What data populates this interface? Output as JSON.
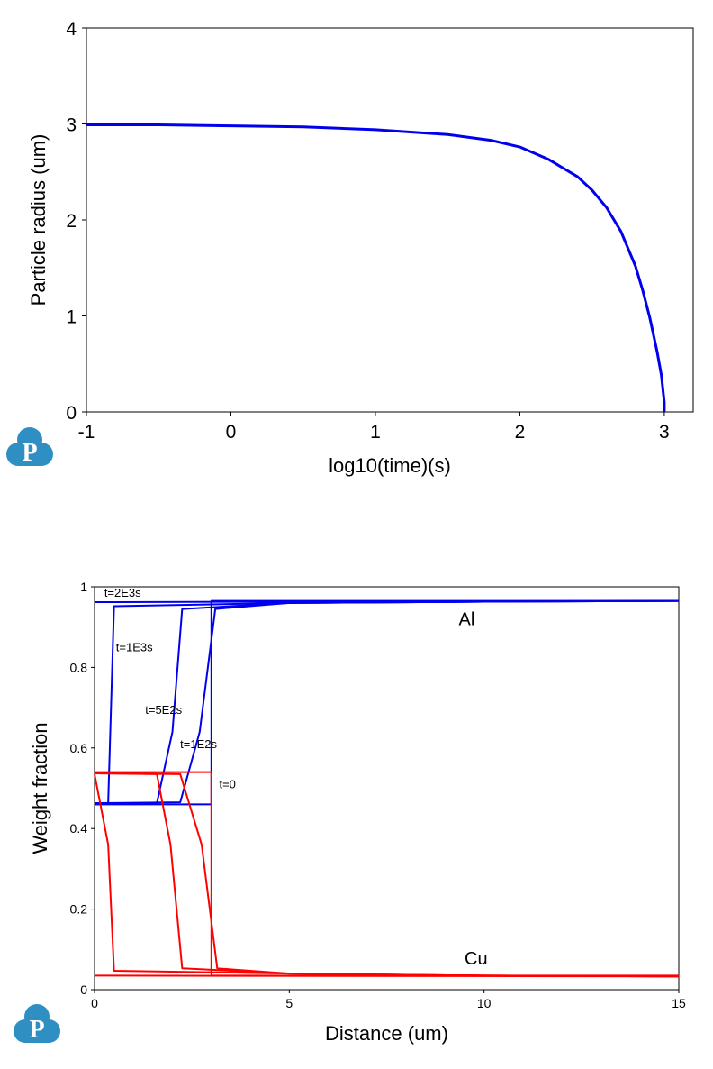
{
  "logo_color": "#2f8fc3",
  "logo_letter": "P",
  "chart_data": [
    {
      "type": "line",
      "title": "",
      "xlabel": "log10(time)(s)",
      "ylabel": "Particle radius (um)",
      "xlim": [
        -1,
        3.2
      ],
      "ylim": [
        0,
        4
      ],
      "xticks": [
        -1,
        0,
        1,
        2,
        3
      ],
      "yticks": [
        0,
        1,
        2,
        3,
        4
      ],
      "grid": false,
      "series": [
        {
          "color": "#0000ee",
          "x": [
            -1.0,
            -0.5,
            0.0,
            0.5,
            1.0,
            1.3,
            1.5,
            1.6,
            1.8,
            2.0,
            2.2,
            2.4,
            2.5,
            2.6,
            2.7,
            2.8,
            2.85,
            2.9,
            2.95,
            2.98,
            3.0,
            3.0
          ],
          "y": [
            2.99,
            2.99,
            2.98,
            2.97,
            2.94,
            2.91,
            2.89,
            2.87,
            2.83,
            2.76,
            2.63,
            2.45,
            2.31,
            2.13,
            1.88,
            1.52,
            1.27,
            0.98,
            0.63,
            0.38,
            0.1,
            0.0
          ]
        }
      ]
    },
    {
      "type": "line",
      "title": "",
      "xlabel": "Distance (um)",
      "ylabel": "Weight fraction",
      "xlim": [
        0,
        15
      ],
      "ylim": [
        0,
        1
      ],
      "xticks": [
        0,
        5,
        10,
        15
      ],
      "yticks": [
        0,
        0.2,
        0.4,
        0.6,
        0.8,
        1
      ],
      "ytick_labels": [
        "0",
        "0.2",
        "0.4",
        "0.6",
        "0.8",
        "1"
      ],
      "grid": false,
      "series": [
        {
          "color": "#0000ee",
          "x": [
            0,
            3.0,
            3.0,
            15
          ],
          "y": [
            0.46,
            0.46,
            0.965,
            0.965
          ]
        },
        {
          "color": "#0000ee",
          "x": [
            0,
            2.2,
            2.7,
            3.1,
            5,
            10,
            15
          ],
          "y": [
            0.463,
            0.465,
            0.64,
            0.945,
            0.96,
            0.963,
            0.965
          ]
        },
        {
          "color": "#0000ee",
          "x": [
            0,
            1.6,
            2.0,
            2.25,
            5,
            10,
            15
          ],
          "y": [
            0.46,
            0.463,
            0.64,
            0.945,
            0.96,
            0.963,
            0.965
          ]
        },
        {
          "color": "#0000ee",
          "x": [
            0,
            0.35,
            0.5,
            5,
            10,
            15
          ],
          "y": [
            0.46,
            0.463,
            0.952,
            0.96,
            0.963,
            0.965
          ]
        },
        {
          "color": "#0000ee",
          "x": [
            0,
            15
          ],
          "y": [
            0.962,
            0.965
          ]
        },
        {
          "color": "#ff0000",
          "x": [
            0,
            3.0,
            3.0,
            15
          ],
          "y": [
            0.54,
            0.54,
            0.035,
            0.035
          ]
        },
        {
          "color": "#ff0000",
          "x": [
            0,
            2.2,
            2.75,
            3.15,
            5,
            10,
            15
          ],
          "y": [
            0.537,
            0.535,
            0.36,
            0.053,
            0.04,
            0.035,
            0.033
          ]
        },
        {
          "color": "#ff0000",
          "x": [
            0,
            1.6,
            1.95,
            2.25,
            5,
            10,
            15
          ],
          "y": [
            0.537,
            0.535,
            0.36,
            0.053,
            0.04,
            0.035,
            0.033
          ]
        },
        {
          "color": "#ff0000",
          "x": [
            0,
            0.35,
            0.5,
            5,
            10,
            15
          ],
          "y": [
            0.535,
            0.36,
            0.047,
            0.04,
            0.035,
            0.033
          ]
        },
        {
          "color": "#ff0000",
          "x": [
            0,
            15
          ],
          "y": [
            0.035,
            0.033
          ]
        }
      ],
      "annotations": [
        {
          "text": "t=2E3s",
          "x": 0.25,
          "y": 0.975,
          "size": "sm"
        },
        {
          "text": "t=1E3s",
          "x": 0.55,
          "y": 0.84,
          "size": "sm"
        },
        {
          "text": "t=5E2s",
          "x": 1.3,
          "y": 0.685,
          "size": "sm"
        },
        {
          "text": "t=1E2s",
          "x": 2.2,
          "y": 0.6,
          "size": "sm"
        },
        {
          "text": "t=0",
          "x": 3.2,
          "y": 0.5,
          "size": "sm"
        },
        {
          "text": "Al",
          "x": 9.35,
          "y": 0.905,
          "size": "lg"
        },
        {
          "text": "Cu",
          "x": 9.5,
          "y": 0.063,
          "size": "lg"
        }
      ]
    }
  ]
}
